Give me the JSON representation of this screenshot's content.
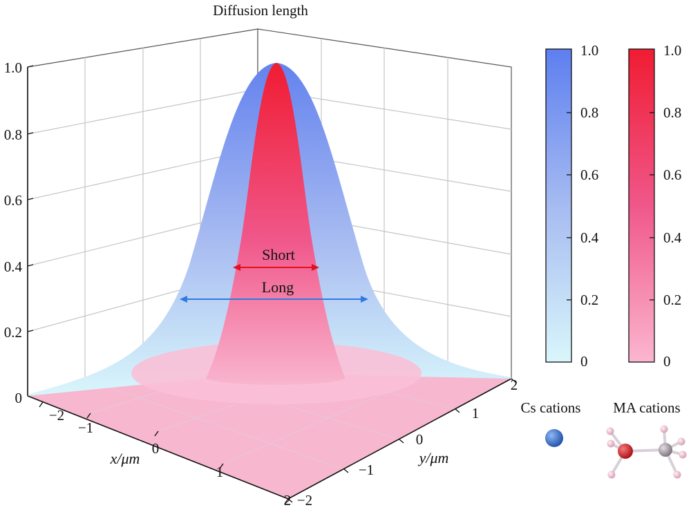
{
  "chart_data": {
    "type": "surface3d",
    "title": "Diffusion length",
    "x_axis": {
      "label": "x/μm",
      "ticks": [
        "−2",
        "−1",
        "0",
        "1",
        "2"
      ],
      "range": [
        -2,
        2
      ]
    },
    "y_axis": {
      "label": "y/μm",
      "ticks": [
        "−2",
        "−1",
        "0",
        "1",
        "2"
      ],
      "range": [
        -2,
        2
      ]
    },
    "z_axis": {
      "ticks": [
        "0",
        "0.2",
        "0.4",
        "0.6",
        "0.8",
        "1.0"
      ],
      "range": [
        0,
        1
      ]
    },
    "grid": true,
    "series": [
      {
        "function": "gaussian",
        "peak": 1.0,
        "color_low": "#d9f6fb",
        "color_high": "#5d7ff0",
        "annotation": "Long",
        "half_width_at_0_4": 1.25
      },
      {
        "function": "gaussian",
        "peak": 1.0,
        "color_low": "#fbb6cf",
        "color_high": "#f01c32",
        "annotation": "Short",
        "half_width_at_0_4": 0.55
      }
    ],
    "colorbars": [
      {
        "ticks": [
          "0",
          "0.2",
          "0.4",
          "0.6",
          "0.8",
          "1.0"
        ],
        "color_low": "#d9f6fb",
        "color_high": "#5d7ff0"
      },
      {
        "ticks": [
          "0",
          "0.2",
          "0.4",
          "0.6",
          "0.8",
          "1.0"
        ],
        "color_low": "#fbb6cf",
        "color_high": "#f01c32"
      }
    ]
  },
  "annotations": {
    "short": "Short",
    "long": "Long"
  },
  "legend": {
    "cs": "Cs cations",
    "ma": "MA cations"
  },
  "colors": {
    "arrow_short": "#e0101e",
    "arrow_long": "#2f7ae0",
    "floor": "#f7b7cf",
    "grid": "#b8b8b8",
    "cs_atom": "#2a64c8",
    "ma_center": "#d8141c",
    "ma_carbon": "#9a8f9a",
    "ma_h": "#e9bfd0"
  }
}
